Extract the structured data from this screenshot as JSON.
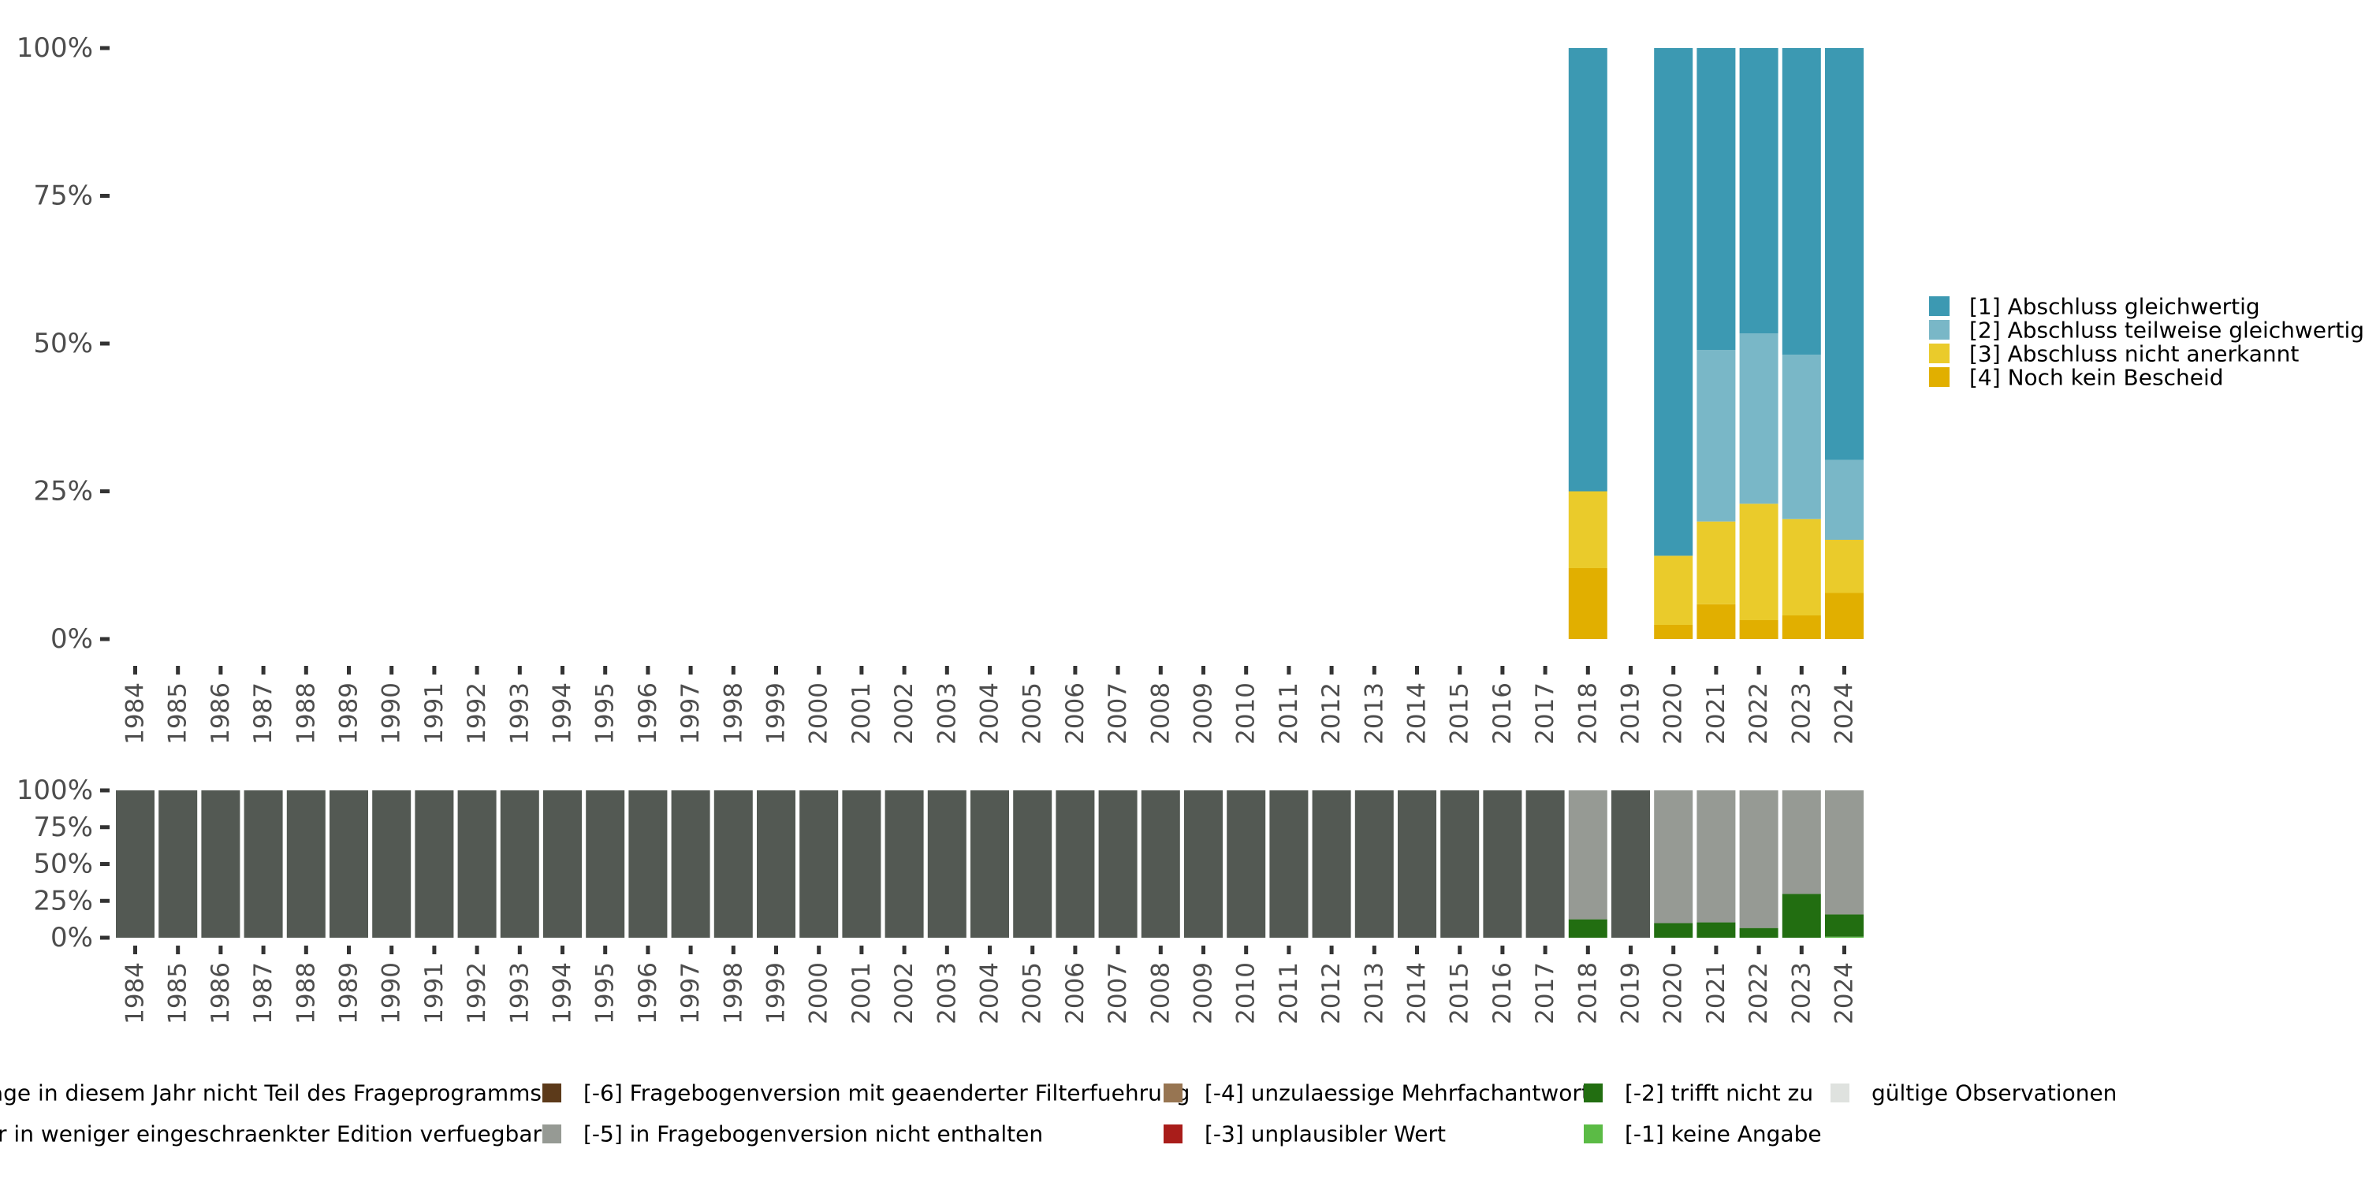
{
  "chart_data": [
    {
      "type": "bar",
      "stacked": true,
      "normalized": true,
      "title": "",
      "xlabel": "",
      "ylabel": "",
      "ylim": [
        0,
        100
      ],
      "yticks": [
        "0%",
        "25%",
        "50%",
        "75%",
        "100%"
      ],
      "grid": false,
      "legend_position": "right",
      "categories": [
        "1984",
        "1985",
        "1986",
        "1987",
        "1988",
        "1989",
        "1990",
        "1991",
        "1992",
        "1993",
        "1994",
        "1995",
        "1996",
        "1997",
        "1998",
        "1999",
        "2000",
        "2001",
        "2002",
        "2003",
        "2004",
        "2005",
        "2006",
        "2007",
        "2008",
        "2009",
        "2010",
        "2011",
        "2012",
        "2013",
        "2014",
        "2015",
        "2016",
        "2017",
        "2018",
        "2019",
        "2020",
        "2021",
        "2022",
        "2023",
        "2024"
      ],
      "series": [
        {
          "name": "[4] Noch kein Bescheid",
          "color": "#e1af00",
          "values": {
            "2018": 12.0,
            "2020": 2.4,
            "2021": 5.9,
            "2022": 3.2,
            "2023": 4.0,
            "2024": 7.8
          }
        },
        {
          "name": "[3] Abschluss nicht anerkannt",
          "color": "#eacb2b",
          "values": {
            "2018": 13.0,
            "2020": 11.7,
            "2021": 14.0,
            "2022": 19.7,
            "2023": 16.3,
            "2024": 9.0
          }
        },
        {
          "name": "[2] Abschluss teilweise gleichwertig",
          "color": "#79b7c7",
          "values": {
            "2018": 0,
            "2020": 0,
            "2021": 29.0,
            "2022": 28.8,
            "2023": 27.8,
            "2024": 13.5
          }
        },
        {
          "name": "[1] Abschluss gleichwertig",
          "color": "#3c99b2",
          "values": {
            "2018": 75.0,
            "2020": 85.9,
            "2021": 51.1,
            "2022": 48.3,
            "2023": 51.9,
            "2024": 69.7
          }
        }
      ],
      "legend": [
        {
          "label": "[1] Abschluss gleichwertig",
          "color": "#3c99b2"
        },
        {
          "label": "[2] Abschluss teilweise gleichwertig",
          "color": "#79b7c7"
        },
        {
          "label": "[3] Abschluss nicht anerkannt",
          "color": "#eacb2b"
        },
        {
          "label": "[4] Noch kein Bescheid",
          "color": "#e1af00"
        }
      ]
    },
    {
      "type": "bar",
      "stacked": true,
      "normalized": true,
      "title": "",
      "xlabel": "",
      "ylabel": "",
      "ylim": [
        0,
        100
      ],
      "yticks": [
        "0%",
        "25%",
        "50%",
        "75%",
        "100%"
      ],
      "grid": false,
      "legend_position": "bottom",
      "categories": [
        "1984",
        "1985",
        "1986",
        "1987",
        "1988",
        "1989",
        "1990",
        "1991",
        "1992",
        "1993",
        "1994",
        "1995",
        "1996",
        "1997",
        "1998",
        "1999",
        "2000",
        "2001",
        "2002",
        "2003",
        "2004",
        "2005",
        "2006",
        "2007",
        "2008",
        "2009",
        "2010",
        "2011",
        "2012",
        "2013",
        "2014",
        "2015",
        "2016",
        "2017",
        "2018",
        "2019",
        "2020",
        "2021",
        "2022",
        "2023",
        "2024"
      ],
      "series": [
        {
          "name": "[-1] keine Angabe",
          "color": "#5bbb45",
          "values": {
            "2024": 0.7
          }
        },
        {
          "name": "[-2] trifft nicht zu",
          "color": "#226e11",
          "values": {
            "2018": 12.5,
            "2020": 9.9,
            "2021": 10.4,
            "2022": 6.6,
            "2023": 29.7,
            "2024": 15.1
          }
        },
        {
          "name": "[-5] in Fragebogenversion nicht enthalten",
          "color": "#969a94",
          "values": {
            "2018": 87.5,
            "2020": 90.1,
            "2021": 89.6,
            "2022": 93.4,
            "2023": 70.3,
            "2024": 84.2
          }
        },
        {
          "name": "Frage in diesem Jahr nicht Teil des Frageprogramms",
          "color": "#535953",
          "values": {
            "1984": 100,
            "1985": 100,
            "1986": 100,
            "1987": 100,
            "1988": 100,
            "1989": 100,
            "1990": 100,
            "1991": 100,
            "1992": 100,
            "1993": 100,
            "1994": 100,
            "1995": 100,
            "1996": 100,
            "1997": 100,
            "1998": 100,
            "1999": 100,
            "2000": 100,
            "2001": 100,
            "2002": 100,
            "2003": 100,
            "2004": 100,
            "2005": 100,
            "2006": 100,
            "2007": 100,
            "2008": 100,
            "2009": 100,
            "2010": 100,
            "2011": 100,
            "2012": 100,
            "2013": 100,
            "2014": 100,
            "2015": 100,
            "2016": 100,
            "2017": 100,
            "2019": 100
          }
        }
      ],
      "legend": [
        {
          "label": "Frage in diesem Jahr nicht Teil des Frageprogramms",
          "color": "#535953",
          "row": 0,
          "col": 0
        },
        {
          "label": "Frage nur in weniger eingeschraenkter Edition verfuegbar",
          "color": "",
          "row": 1,
          "col": 0
        },
        {
          "label": "[-6] Fragebogenversion mit geaenderter Filterfuehrung",
          "color": "#5c3a1a",
          "row": 0,
          "col": 1
        },
        {
          "label": "[-5] in Fragebogenversion nicht enthalten",
          "color": "#969a94",
          "row": 1,
          "col": 1
        },
        {
          "label": "[-4] unzulaessige Mehrfachantwort",
          "color": "#977552",
          "row": 0,
          "col": 2
        },
        {
          "label": "[-3] unplausibler Wert",
          "color": "#a91d1a",
          "row": 1,
          "col": 2
        },
        {
          "label": "[-2] trifft nicht zu",
          "color": "#226e11",
          "row": 0,
          "col": 3
        },
        {
          "label": "[-1] keine Angabe",
          "color": "#5bbb45",
          "row": 1,
          "col": 3
        },
        {
          "label": "gültige Observationen",
          "color": "#dfe2df",
          "row": 0,
          "col": 4
        }
      ]
    }
  ]
}
